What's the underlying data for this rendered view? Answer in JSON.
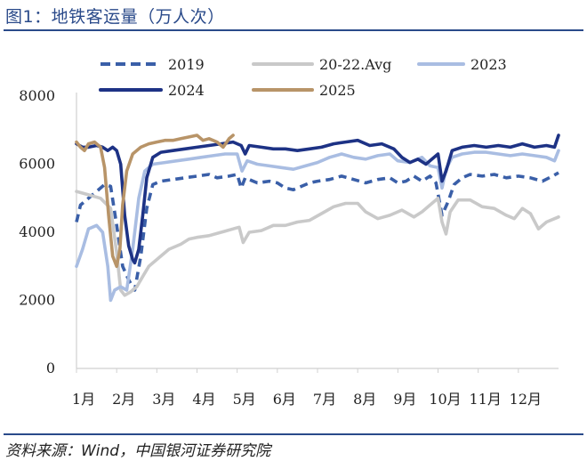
{
  "title": "图1：地铁客运量（万人次）",
  "source": "资料来源：Wind，中国银河证券研究院",
  "colors": {
    "rule": "#2a4a8a",
    "s2019": "#3a5fa8",
    "s2022": "#c9c9c9",
    "s2023": "#a9bde2",
    "s2024": "#1d3285",
    "s2025": "#b89468"
  },
  "chart_data": {
    "type": "line",
    "title": "",
    "xlabel": "",
    "ylabel": "",
    "xlim": [
      0,
      12
    ],
    "ylim": [
      0,
      8000
    ],
    "yticks": [
      0,
      2000,
      4000,
      6000,
      8000
    ],
    "xticks": [
      {
        "label": "1月",
        "x": 0
      },
      {
        "label": "2月",
        "x": 1
      },
      {
        "label": "3月",
        "x": 2
      },
      {
        "label": "4月",
        "x": 3
      },
      {
        "label": "5月",
        "x": 4
      },
      {
        "label": "6月",
        "x": 5
      },
      {
        "label": "7月",
        "x": 6
      },
      {
        "label": "8月",
        "x": 7
      },
      {
        "label": "9月",
        "x": 8
      },
      {
        "label": "10月",
        "x": 9
      },
      {
        "label": "11月",
        "x": 10
      },
      {
        "label": "12月",
        "x": 11
      }
    ],
    "legend": "top",
    "series": [
      {
        "name": "2019",
        "style": "dashed",
        "colorKey": "s2019",
        "points": [
          [
            0.0,
            4300
          ],
          [
            0.1,
            4800
          ],
          [
            0.3,
            5000
          ],
          [
            0.5,
            5200
          ],
          [
            0.7,
            5400
          ],
          [
            0.85,
            5350
          ],
          [
            1.0,
            4200
          ],
          [
            1.15,
            3000
          ],
          [
            1.3,
            2600
          ],
          [
            1.45,
            2300
          ],
          [
            1.6,
            3300
          ],
          [
            1.75,
            4700
          ],
          [
            1.9,
            5400
          ],
          [
            2.1,
            5500
          ],
          [
            2.4,
            5550
          ],
          [
            2.7,
            5600
          ],
          [
            3.0,
            5650
          ],
          [
            3.3,
            5700
          ],
          [
            3.5,
            5600
          ],
          [
            3.8,
            5650
          ],
          [
            4.0,
            5700
          ],
          [
            4.1,
            5300
          ],
          [
            4.2,
            5600
          ],
          [
            4.5,
            5450
          ],
          [
            4.8,
            5500
          ],
          [
            5.0,
            5450
          ],
          [
            5.2,
            5300
          ],
          [
            5.4,
            5250
          ],
          [
            5.6,
            5350
          ],
          [
            5.8,
            5450
          ],
          [
            6.0,
            5500
          ],
          [
            6.3,
            5550
          ],
          [
            6.6,
            5650
          ],
          [
            6.9,
            5550
          ],
          [
            7.2,
            5450
          ],
          [
            7.5,
            5550
          ],
          [
            7.8,
            5600
          ],
          [
            8.0,
            5450
          ],
          [
            8.2,
            5500
          ],
          [
            8.4,
            5650
          ],
          [
            8.6,
            5500
          ],
          [
            8.8,
            5650
          ],
          [
            8.95,
            5450
          ],
          [
            9.1,
            4500
          ],
          [
            9.25,
            4900
          ],
          [
            9.4,
            5400
          ],
          [
            9.6,
            5600
          ],
          [
            9.8,
            5700
          ],
          [
            10.1,
            5650
          ],
          [
            10.4,
            5700
          ],
          [
            10.7,
            5600
          ],
          [
            11.0,
            5650
          ],
          [
            11.3,
            5600
          ],
          [
            11.6,
            5500
          ],
          [
            11.85,
            5650
          ],
          [
            12.0,
            5750
          ]
        ]
      },
      {
        "name": "20-22.Avg",
        "style": "solid",
        "colorKey": "s2022",
        "points": [
          [
            0.0,
            5200
          ],
          [
            0.3,
            5100
          ],
          [
            0.6,
            5000
          ],
          [
            0.85,
            4700
          ],
          [
            1.0,
            3400
          ],
          [
            1.1,
            2300
          ],
          [
            1.2,
            2150
          ],
          [
            1.35,
            2250
          ],
          [
            1.5,
            2400
          ],
          [
            1.65,
            2700
          ],
          [
            1.8,
            3000
          ],
          [
            2.0,
            3200
          ],
          [
            2.3,
            3500
          ],
          [
            2.6,
            3650
          ],
          [
            2.8,
            3800
          ],
          [
            3.0,
            3850
          ],
          [
            3.3,
            3900
          ],
          [
            3.6,
            4000
          ],
          [
            3.9,
            4100
          ],
          [
            4.05,
            4150
          ],
          [
            4.15,
            3700
          ],
          [
            4.3,
            4000
          ],
          [
            4.6,
            4050
          ],
          [
            4.9,
            4200
          ],
          [
            5.2,
            4200
          ],
          [
            5.5,
            4300
          ],
          [
            5.8,
            4350
          ],
          [
            6.1,
            4550
          ],
          [
            6.4,
            4750
          ],
          [
            6.7,
            4850
          ],
          [
            7.0,
            4850
          ],
          [
            7.2,
            4600
          ],
          [
            7.5,
            4400
          ],
          [
            7.8,
            4500
          ],
          [
            8.1,
            4650
          ],
          [
            8.4,
            4450
          ],
          [
            8.6,
            4600
          ],
          [
            8.85,
            4850
          ],
          [
            9.0,
            5000
          ],
          [
            9.1,
            4300
          ],
          [
            9.2,
            3950
          ],
          [
            9.3,
            4600
          ],
          [
            9.5,
            4950
          ],
          [
            9.8,
            4950
          ],
          [
            10.1,
            4750
          ],
          [
            10.4,
            4700
          ],
          [
            10.7,
            4500
          ],
          [
            10.9,
            4400
          ],
          [
            11.1,
            4700
          ],
          [
            11.3,
            4550
          ],
          [
            11.5,
            4100
          ],
          [
            11.7,
            4300
          ],
          [
            11.9,
            4400
          ],
          [
            12.0,
            4450
          ]
        ]
      },
      {
        "name": "2023",
        "style": "solid",
        "colorKey": "s2023",
        "points": [
          [
            0.0,
            3000
          ],
          [
            0.15,
            3500
          ],
          [
            0.3,
            4100
          ],
          [
            0.5,
            4200
          ],
          [
            0.65,
            4000
          ],
          [
            0.78,
            3000
          ],
          [
            0.85,
            2000
          ],
          [
            0.95,
            2300
          ],
          [
            1.1,
            2400
          ],
          [
            1.25,
            2300
          ],
          [
            1.4,
            3500
          ],
          [
            1.55,
            5000
          ],
          [
            1.7,
            5800
          ],
          [
            1.9,
            6000
          ],
          [
            2.2,
            6050
          ],
          [
            2.5,
            6100
          ],
          [
            2.8,
            6150
          ],
          [
            3.1,
            6200
          ],
          [
            3.4,
            6250
          ],
          [
            3.7,
            6300
          ],
          [
            4.0,
            6300
          ],
          [
            4.12,
            5800
          ],
          [
            4.25,
            6100
          ],
          [
            4.5,
            6000
          ],
          [
            4.8,
            5950
          ],
          [
            5.1,
            5900
          ],
          [
            5.4,
            5850
          ],
          [
            5.7,
            5950
          ],
          [
            6.0,
            6050
          ],
          [
            6.3,
            6200
          ],
          [
            6.6,
            6300
          ],
          [
            6.9,
            6200
          ],
          [
            7.2,
            6150
          ],
          [
            7.5,
            6250
          ],
          [
            7.8,
            6300
          ],
          [
            8.0,
            6100
          ],
          [
            8.3,
            6050
          ],
          [
            8.6,
            6200
          ],
          [
            8.8,
            5950
          ],
          [
            9.0,
            5900
          ],
          [
            9.1,
            5300
          ],
          [
            9.2,
            5850
          ],
          [
            9.35,
            6200
          ],
          [
            9.6,
            6300
          ],
          [
            9.9,
            6350
          ],
          [
            10.2,
            6350
          ],
          [
            10.5,
            6300
          ],
          [
            10.8,
            6250
          ],
          [
            11.1,
            6300
          ],
          [
            11.4,
            6250
          ],
          [
            11.7,
            6200
          ],
          [
            11.9,
            6100
          ],
          [
            12.0,
            6400
          ]
        ]
      },
      {
        "name": "2024",
        "style": "solid",
        "colorKey": "s2024",
        "points": [
          [
            0.0,
            6600
          ],
          [
            0.15,
            6500
          ],
          [
            0.3,
            6500
          ],
          [
            0.5,
            6550
          ],
          [
            0.65,
            6500
          ],
          [
            0.78,
            6400
          ],
          [
            0.9,
            6500
          ],
          [
            1.0,
            6400
          ],
          [
            1.1,
            6000
          ],
          [
            1.2,
            4500
          ],
          [
            1.3,
            3600
          ],
          [
            1.4,
            3200
          ],
          [
            1.45,
            3100
          ],
          [
            1.55,
            3500
          ],
          [
            1.65,
            4500
          ],
          [
            1.75,
            5600
          ],
          [
            1.9,
            6200
          ],
          [
            2.1,
            6350
          ],
          [
            2.4,
            6400
          ],
          [
            2.7,
            6450
          ],
          [
            3.0,
            6500
          ],
          [
            3.3,
            6550
          ],
          [
            3.6,
            6600
          ],
          [
            3.9,
            6650
          ],
          [
            4.1,
            6550
          ],
          [
            4.2,
            6300
          ],
          [
            4.3,
            6550
          ],
          [
            4.6,
            6500
          ],
          [
            4.9,
            6450
          ],
          [
            5.2,
            6450
          ],
          [
            5.5,
            6400
          ],
          [
            5.8,
            6450
          ],
          [
            6.1,
            6500
          ],
          [
            6.4,
            6600
          ],
          [
            6.7,
            6650
          ],
          [
            7.0,
            6700
          ],
          [
            7.3,
            6550
          ],
          [
            7.6,
            6600
          ],
          [
            7.9,
            6450
          ],
          [
            8.1,
            6200
          ],
          [
            8.3,
            6050
          ],
          [
            8.5,
            6150
          ],
          [
            8.7,
            6000
          ],
          [
            8.85,
            6150
          ],
          [
            9.0,
            6300
          ],
          [
            9.1,
            5500
          ],
          [
            9.2,
            5800
          ],
          [
            9.35,
            6400
          ],
          [
            9.6,
            6500
          ],
          [
            9.9,
            6550
          ],
          [
            10.2,
            6500
          ],
          [
            10.5,
            6550
          ],
          [
            10.8,
            6500
          ],
          [
            11.1,
            6600
          ],
          [
            11.4,
            6500
          ],
          [
            11.7,
            6550
          ],
          [
            11.9,
            6500
          ],
          [
            12.0,
            6850
          ]
        ]
      },
      {
        "name": "2025",
        "style": "solid",
        "colorKey": "s2025",
        "points": [
          [
            0.0,
            6650
          ],
          [
            0.1,
            6500
          ],
          [
            0.2,
            6400
          ],
          [
            0.3,
            6600
          ],
          [
            0.45,
            6650
          ],
          [
            0.6,
            6500
          ],
          [
            0.7,
            5900
          ],
          [
            0.8,
            4500
          ],
          [
            0.9,
            3300
          ],
          [
            1.0,
            3000
          ],
          [
            1.08,
            3500
          ],
          [
            1.15,
            4800
          ],
          [
            1.25,
            5800
          ],
          [
            1.4,
            6300
          ],
          [
            1.6,
            6500
          ],
          [
            1.8,
            6600
          ],
          [
            2.0,
            6650
          ],
          [
            2.2,
            6700
          ],
          [
            2.4,
            6700
          ],
          [
            2.6,
            6750
          ],
          [
            2.8,
            6800
          ],
          [
            3.0,
            6850
          ],
          [
            3.15,
            6700
          ],
          [
            3.3,
            6750
          ],
          [
            3.5,
            6650
          ],
          [
            3.65,
            6500
          ],
          [
            3.8,
            6750
          ],
          [
            3.9,
            6850
          ]
        ]
      }
    ]
  }
}
